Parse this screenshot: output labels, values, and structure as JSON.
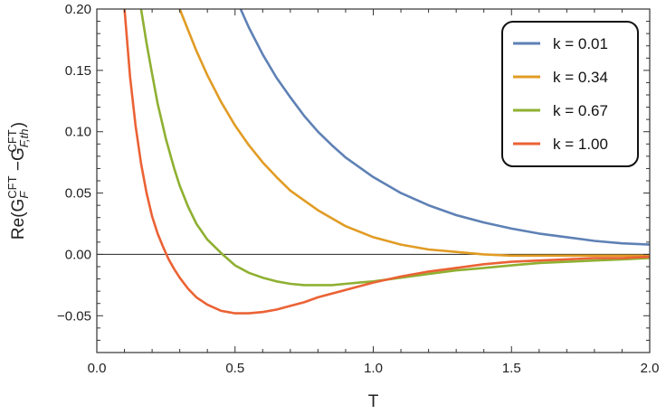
{
  "chart_data": {
    "type": "line",
    "xlabel": "T",
    "ylabel_parts": {
      "prefix": "Re(G",
      "sub1": "F",
      "sup1": "CFT",
      "mid": " −G",
      "sub2": "F,th",
      "sup2": "CFT",
      "suffix": ")"
    },
    "xlim": [
      0.0,
      2.0
    ],
    "ylim": [
      -0.08,
      0.2
    ],
    "xticks": [
      "0.0",
      "0.5",
      "1.0",
      "1.5",
      "2.0"
    ],
    "xtick_values": [
      0.0,
      0.5,
      1.0,
      1.5,
      2.0
    ],
    "yticks": [
      "0.20",
      "0.15",
      "0.10",
      "0.05",
      "0.00",
      "−0.05"
    ],
    "ytick_values": [
      0.2,
      0.15,
      0.1,
      0.05,
      0.0,
      -0.05
    ],
    "zero_line": true,
    "legend_position": "top-right",
    "series": [
      {
        "name": "k = 0.01",
        "color": "#5e81b5",
        "x": [
          0.52,
          0.55,
          0.6,
          0.65,
          0.7,
          0.75,
          0.8,
          0.85,
          0.9,
          0.95,
          1.0,
          1.1,
          1.2,
          1.3,
          1.4,
          1.5,
          1.6,
          1.7,
          1.8,
          1.9,
          2.0
        ],
        "y": [
          0.2,
          0.185,
          0.163,
          0.144,
          0.128,
          0.113,
          0.1,
          0.089,
          0.079,
          0.071,
          0.063,
          0.05,
          0.04,
          0.032,
          0.026,
          0.021,
          0.017,
          0.014,
          0.011,
          0.009,
          0.008
        ]
      },
      {
        "name": "k = 0.34",
        "color": "#e19c24",
        "x": [
          0.3,
          0.33,
          0.36,
          0.4,
          0.45,
          0.5,
          0.55,
          0.6,
          0.65,
          0.7,
          0.8,
          0.9,
          1.0,
          1.1,
          1.2,
          1.3,
          1.4,
          1.5,
          1.6,
          1.7,
          1.8,
          1.9,
          2.0
        ],
        "y": [
          0.2,
          0.183,
          0.166,
          0.146,
          0.124,
          0.105,
          0.089,
          0.075,
          0.063,
          0.052,
          0.036,
          0.023,
          0.014,
          0.008,
          0.004,
          0.002,
          0.0,
          -0.001,
          -0.001,
          -0.001,
          -0.001,
          -0.001,
          -0.001
        ]
      },
      {
        "name": "k = 0.67",
        "color": "#8fb032",
        "x": [
          0.16,
          0.18,
          0.2,
          0.22,
          0.25,
          0.28,
          0.3,
          0.33,
          0.36,
          0.4,
          0.45,
          0.5,
          0.55,
          0.6,
          0.65,
          0.7,
          0.75,
          0.8,
          0.85,
          0.9,
          0.95,
          1.0,
          1.1,
          1.2,
          1.3,
          1.4,
          1.5,
          1.6,
          1.7,
          1.8,
          1.9,
          2.0
        ],
        "y": [
          0.2,
          0.172,
          0.147,
          0.123,
          0.094,
          0.07,
          0.056,
          0.039,
          0.025,
          0.012,
          0.001,
          -0.009,
          -0.015,
          -0.019,
          -0.022,
          -0.024,
          -0.025,
          -0.025,
          -0.025,
          -0.024,
          -0.023,
          -0.022,
          -0.019,
          -0.016,
          -0.013,
          -0.011,
          -0.009,
          -0.007,
          -0.006,
          -0.005,
          -0.004,
          -0.003
        ]
      },
      {
        "name": "k = 1.00",
        "color": "#eb6235",
        "x": [
          0.1,
          0.12,
          0.14,
          0.16,
          0.18,
          0.2,
          0.22,
          0.24,
          0.26,
          0.28,
          0.3,
          0.33,
          0.36,
          0.4,
          0.45,
          0.5,
          0.55,
          0.6,
          0.65,
          0.7,
          0.75,
          0.8,
          0.9,
          1.0,
          1.1,
          1.2,
          1.3,
          1.4,
          1.5,
          1.6,
          1.7,
          1.8,
          1.9,
          2.0
        ],
        "y": [
          0.2,
          0.145,
          0.105,
          0.074,
          0.05,
          0.031,
          0.017,
          0.006,
          -0.004,
          -0.012,
          -0.019,
          -0.028,
          -0.035,
          -0.041,
          -0.046,
          -0.048,
          -0.048,
          -0.047,
          -0.045,
          -0.042,
          -0.039,
          -0.035,
          -0.029,
          -0.023,
          -0.018,
          -0.014,
          -0.011,
          -0.008,
          -0.006,
          -0.005,
          -0.004,
          -0.003,
          -0.003,
          -0.002
        ]
      }
    ]
  }
}
